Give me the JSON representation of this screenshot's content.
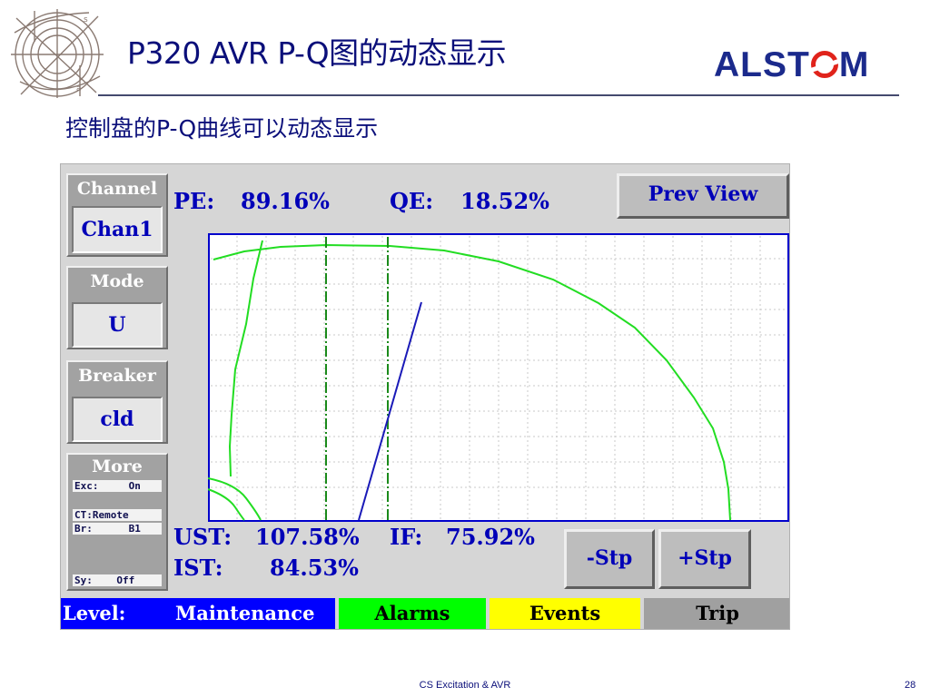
{
  "slide": {
    "title": "P320 AVR P-Q图的动态显示",
    "subtitle": "控制盘的P-Q曲线可以动态显示",
    "brand": {
      "pre": "ALST",
      "post": "M"
    },
    "footer": "CS Excitation & AVR",
    "page_number": "28"
  },
  "hmi": {
    "channel": {
      "label": "Channel",
      "value": "Chan1"
    },
    "mode": {
      "label": "Mode",
      "value": "U"
    },
    "breaker": {
      "label": "Breaker",
      "value": "cld"
    },
    "more": {
      "label": "More",
      "lines": [
        "Exc:     On",
        "CT:Remote",
        "Br:      B1",
        "Sy:    Off"
      ]
    },
    "readouts": {
      "pe_label": "PE:",
      "pe_value": "89.16%",
      "qe_label": "QE:",
      "qe_value": "18.52%",
      "ust_label": "UST:",
      "ust_value": "107.58%",
      "if_label": "IF:",
      "if_value": "75.92%",
      "ist_label": "IST:",
      "ist_value": "84.53%"
    },
    "buttons": {
      "prev_view": "Prev View",
      "minus_step": "-Stp",
      "plus_step": "+Stp"
    },
    "status_bar": {
      "level_label": "Level:",
      "level_value": "Maintenance",
      "alarms": "Alarms",
      "events": "Events",
      "trip": "Trip"
    },
    "colors": {
      "level_bg": "#0000ff",
      "alarms_bg": "#00ff00",
      "events_bg": "#ffff00",
      "trip_bg": "#a0a0a0",
      "capability_curve": "#22dd22",
      "operating_line": "#1a1ab8",
      "plot_border": "#0000cc"
    }
  }
}
